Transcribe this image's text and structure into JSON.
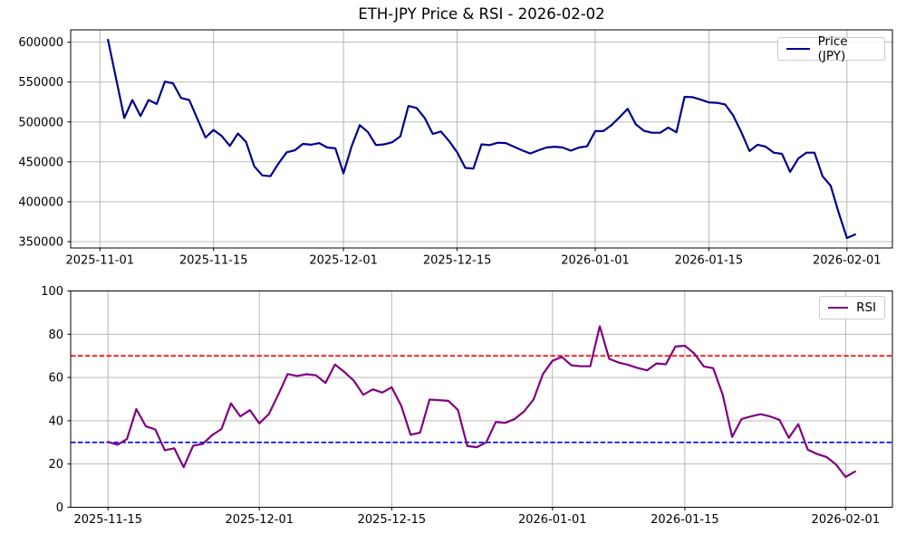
{
  "figure": {
    "title": "ETH-JPY Price & RSI - 2026-02-02"
  },
  "chart_data": [
    {
      "type": "line",
      "name": "price",
      "legend": "Price (JPY)",
      "color": "#00008b",
      "grid": true,
      "legend_position": "upper right",
      "xticks": [
        "2025-11-01",
        "2025-11-15",
        "2025-12-01",
        "2025-12-15",
        "2026-01-01",
        "2026-01-15",
        "2026-02-01"
      ],
      "yticks": [
        350000,
        400000,
        450000,
        500000,
        550000,
        600000
      ],
      "dates": [
        "2025-11-02",
        "2025-11-03",
        "2025-11-04",
        "2025-11-05",
        "2025-11-06",
        "2025-11-07",
        "2025-11-08",
        "2025-11-09",
        "2025-11-10",
        "2025-11-11",
        "2025-11-12",
        "2025-11-13",
        "2025-11-14",
        "2025-11-15",
        "2025-11-16",
        "2025-11-17",
        "2025-11-18",
        "2025-11-19",
        "2025-11-20",
        "2025-11-21",
        "2025-11-22",
        "2025-11-23",
        "2025-11-24",
        "2025-11-25",
        "2025-11-26",
        "2025-11-27",
        "2025-11-28",
        "2025-11-29",
        "2025-11-30",
        "2025-12-01",
        "2025-12-02",
        "2025-12-03",
        "2025-12-04",
        "2025-12-05",
        "2025-12-06",
        "2025-12-07",
        "2025-12-08",
        "2025-12-09",
        "2025-12-10",
        "2025-12-11",
        "2025-12-12",
        "2025-12-13",
        "2025-12-14",
        "2025-12-15",
        "2025-12-16",
        "2025-12-17",
        "2025-12-18",
        "2025-12-19",
        "2025-12-20",
        "2025-12-21",
        "2025-12-22",
        "2025-12-23",
        "2025-12-24",
        "2025-12-25",
        "2025-12-26",
        "2025-12-27",
        "2025-12-28",
        "2025-12-29",
        "2025-12-30",
        "2025-12-31",
        "2026-01-01",
        "2026-01-02",
        "2026-01-03",
        "2026-01-04",
        "2026-01-05",
        "2026-01-06",
        "2026-01-07",
        "2026-01-08",
        "2026-01-09",
        "2026-01-10",
        "2026-01-11",
        "2026-01-12",
        "2026-01-13",
        "2026-01-14",
        "2026-01-15",
        "2026-01-16",
        "2026-01-17",
        "2026-01-18",
        "2026-01-19",
        "2026-01-20",
        "2026-01-21",
        "2026-01-22",
        "2026-01-23",
        "2026-01-24",
        "2026-01-25",
        "2026-01-26",
        "2026-01-27",
        "2026-01-28",
        "2026-01-29",
        "2026-01-30",
        "2026-01-31",
        "2026-02-01",
        "2026-02-02"
      ],
      "values": [
        603000,
        554000,
        505000,
        527500,
        507500,
        527500,
        522500,
        550500,
        548500,
        530000,
        527500,
        504000,
        480500,
        490000,
        482500,
        470000,
        485500,
        475000,
        444500,
        433000,
        432000,
        448000,
        462000,
        464500,
        472500,
        471500,
        473500,
        468000,
        467000,
        435500,
        469500,
        496000,
        487500,
        471000,
        472000,
        474500,
        482000,
        520000,
        517500,
        505000,
        485000,
        488000,
        476000,
        462000,
        442500,
        441500,
        472000,
        471000,
        474000,
        473500,
        469000,
        464500,
        460500,
        464500,
        468000,
        469000,
        468000,
        464000,
        468000,
        469500,
        488500,
        488500,
        496000,
        506000,
        516500,
        497000,
        489000,
        486500,
        486500,
        493000,
        487000,
        531500,
        531000,
        528000,
        524500,
        524000,
        522000,
        508000,
        487000,
        463500,
        471500,
        469000,
        461500,
        460000,
        437500,
        454000,
        461500,
        461500,
        432000,
        420000,
        386000,
        354500,
        359000
      ]
    },
    {
      "type": "line",
      "name": "rsi",
      "legend": "RSI",
      "color": "#800080",
      "grid": true,
      "legend_position": "upper right",
      "ylim": [
        0,
        100
      ],
      "xticks": [
        "2025-11-15",
        "2025-12-01",
        "2025-12-15",
        "2026-01-01",
        "2026-01-15",
        "2026-02-01"
      ],
      "yticks": [
        0,
        20,
        40,
        60,
        80,
        100
      ],
      "hlines": [
        {
          "name": "rsi-overbought-line",
          "value": 70,
          "color": "#ff0000",
          "style": "dashed"
        },
        {
          "name": "rsi-oversold-line",
          "value": 30,
          "color": "#0000ff",
          "style": "dashed"
        }
      ],
      "dates": [
        "2025-11-15",
        "2025-11-16",
        "2025-11-17",
        "2025-11-18",
        "2025-11-19",
        "2025-11-20",
        "2025-11-21",
        "2025-11-22",
        "2025-11-23",
        "2025-11-24",
        "2025-11-25",
        "2025-11-26",
        "2025-11-27",
        "2025-11-28",
        "2025-11-29",
        "2025-11-30",
        "2025-12-01",
        "2025-12-02",
        "2025-12-03",
        "2025-12-04",
        "2025-12-05",
        "2025-12-06",
        "2025-12-07",
        "2025-12-08",
        "2025-12-09",
        "2025-12-10",
        "2025-12-11",
        "2025-12-12",
        "2025-12-13",
        "2025-12-14",
        "2025-12-15",
        "2025-12-16",
        "2025-12-17",
        "2025-12-18",
        "2025-12-19",
        "2025-12-20",
        "2025-12-21",
        "2025-12-22",
        "2025-12-23",
        "2025-12-24",
        "2025-12-25",
        "2025-12-26",
        "2025-12-27",
        "2025-12-28",
        "2025-12-29",
        "2025-12-30",
        "2025-12-31",
        "2026-01-01",
        "2026-01-02",
        "2026-01-03",
        "2026-01-04",
        "2026-01-05",
        "2026-01-06",
        "2026-01-07",
        "2026-01-08",
        "2026-01-09",
        "2026-01-10",
        "2026-01-11",
        "2026-01-12",
        "2026-01-13",
        "2026-01-14",
        "2026-01-15",
        "2026-01-16",
        "2026-01-17",
        "2026-01-18",
        "2026-01-19",
        "2026-01-20",
        "2026-01-21",
        "2026-01-22",
        "2026-01-23",
        "2026-01-24",
        "2026-01-25",
        "2026-01-26",
        "2026-01-27",
        "2026-01-28",
        "2026-01-29",
        "2026-01-30",
        "2026-01-31",
        "2026-02-01",
        "2026-02-02"
      ],
      "values": [
        30.2,
        28.9,
        31.5,
        45.4,
        37.4,
        36.0,
        26.3,
        27.3,
        18.5,
        28.5,
        29.2,
        33.3,
        36.2,
        48.0,
        42.0,
        44.9,
        38.8,
        43.0,
        52.0,
        61.6,
        60.7,
        61.5,
        61.0,
        57.5,
        66.0,
        62.5,
        58.5,
        52.0,
        54.5,
        53.0,
        55.5,
        47.0,
        33.5,
        34.5,
        49.8,
        49.5,
        49.2,
        45.0,
        28.3,
        27.8,
        30.0,
        39.4,
        39.0,
        40.8,
        44.3,
        49.8,
        61.6,
        67.7,
        69.5,
        65.6,
        65.2,
        65.2,
        83.7,
        68.6,
        66.9,
        65.8,
        64.4,
        63.3,
        66.5,
        66.1,
        74.3,
        74.7,
        71.1,
        65.1,
        64.3,
        52.0,
        32.5,
        40.8,
        42.0,
        43.0,
        42.0,
        40.4,
        32.1,
        38.4,
        26.6,
        24.6,
        23.2,
        19.7,
        14.0,
        16.5
      ]
    }
  ]
}
